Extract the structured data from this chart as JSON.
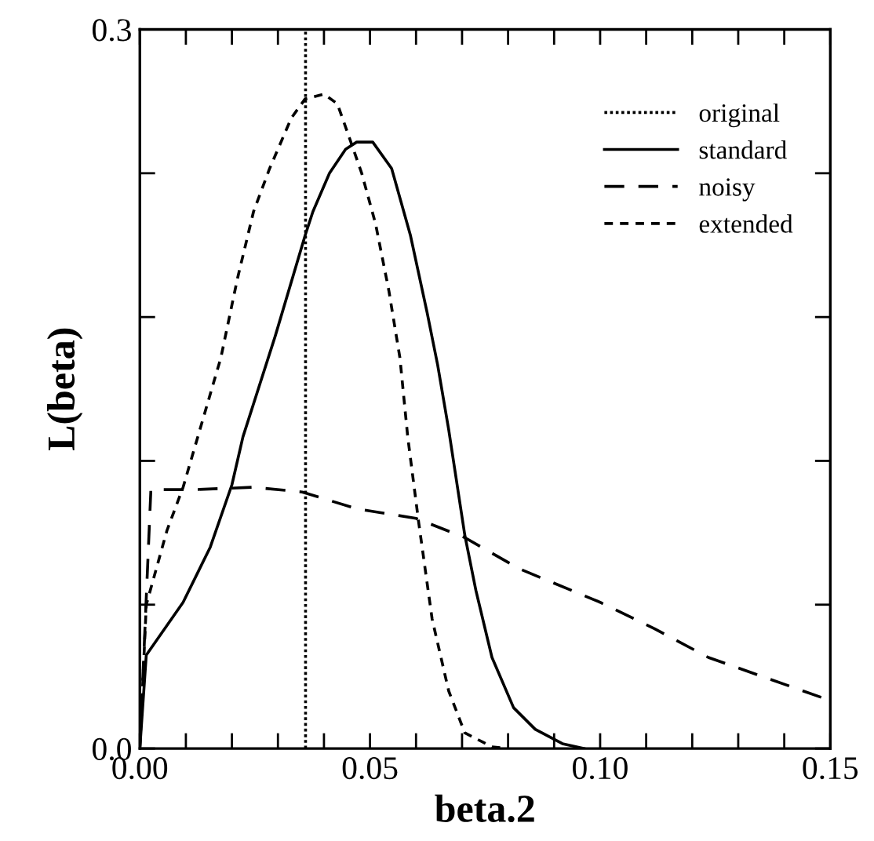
{
  "chart_data": {
    "type": "line",
    "xlabel": "beta.2",
    "ylabel": "L(beta)",
    "xlim": [
      0,
      0.15
    ],
    "ylim": [
      0,
      0.3
    ],
    "xticks": [
      {
        "value": 0,
        "label": "0.00"
      },
      {
        "value": 0.01,
        "label": null
      },
      {
        "value": 0.02,
        "label": null
      },
      {
        "value": 0.03,
        "label": null
      },
      {
        "value": 0.04,
        "label": null
      },
      {
        "value": 0.05,
        "label": "0.05"
      },
      {
        "value": 0.06,
        "label": null
      },
      {
        "value": 0.07,
        "label": null
      },
      {
        "value": 0.08,
        "label": null
      },
      {
        "value": 0.09,
        "label": null
      },
      {
        "value": 0.1,
        "label": "0.10"
      },
      {
        "value": 0.11,
        "label": null
      },
      {
        "value": 0.12,
        "label": null
      },
      {
        "value": 0.13,
        "label": null
      },
      {
        "value": 0.14,
        "label": null
      },
      {
        "value": 0.15,
        "label": "0.15"
      }
    ],
    "yticks": [
      {
        "value": 0,
        "label": "0.0"
      },
      {
        "value": 0.06,
        "label": null
      },
      {
        "value": 0.12,
        "label": null
      },
      {
        "value": 0.18,
        "label": null
      },
      {
        "value": 0.24,
        "label": null
      },
      {
        "value": 0.3,
        "label": "0.3"
      }
    ],
    "legend": "top right",
    "grid": false,
    "marker": "none",
    "series": [
      {
        "name": "original",
        "color": "#000000",
        "line_style": "dotted",
        "x": [
          0.036,
          0.036
        ],
        "values": [
          0,
          0.3
        ]
      },
      {
        "name": "standard",
        "color": "#000000",
        "line_style": "solid",
        "x": [
          0,
          0.0014,
          0.0094,
          0.0153,
          0.02,
          0.0224,
          0.0294,
          0.0359,
          0.0376,
          0.0412,
          0.0447,
          0.0471,
          0.0506,
          0.0547,
          0.0588,
          0.0624,
          0.0647,
          0.0671,
          0.0706,
          0.073,
          0.0765,
          0.0812,
          0.0859,
          0.0918,
          0.0965
        ],
        "values": [
          0,
          0.039,
          0.061,
          0.084,
          0.11,
          0.13,
          0.172,
          0.214,
          0.224,
          0.24,
          0.25,
          0.253,
          0.253,
          0.242,
          0.214,
          0.182,
          0.16,
          0.133,
          0.089,
          0.066,
          0.038,
          0.017,
          0.008,
          0.002,
          0
        ]
      },
      {
        "name": "noisy",
        "color": "#000000",
        "line_style": "dashed",
        "x": [
          0,
          0.0024,
          0.0118,
          0.0247,
          0.0353,
          0.0471,
          0.06,
          0.0706,
          0.0824,
          0.1,
          0.1118,
          0.1235,
          0.1353,
          0.15
        ],
        "values": [
          0,
          0.108,
          0.108,
          0.109,
          0.107,
          0.1,
          0.096,
          0.088,
          0.075,
          0.061,
          0.05,
          0.038,
          0.03,
          0.02
        ]
      },
      {
        "name": "extended",
        "color": "#000000",
        "line_style": "short_dashed",
        "x": [
          0,
          0.0014,
          0.0059,
          0.0094,
          0.0135,
          0.0176,
          0.0212,
          0.0247,
          0.0282,
          0.0329,
          0.0359,
          0.04,
          0.0429,
          0.0453,
          0.0482,
          0.0512,
          0.0541,
          0.0565,
          0.0582,
          0.0606,
          0.0635,
          0.0671,
          0.0706,
          0.0765,
          0.08
        ],
        "values": [
          0,
          0.06,
          0.091,
          0.109,
          0.136,
          0.163,
          0.196,
          0.224,
          0.242,
          0.263,
          0.271,
          0.273,
          0.269,
          0.256,
          0.24,
          0.219,
          0.191,
          0.163,
          0.13,
          0.094,
          0.054,
          0.024,
          0.0065,
          0.0007,
          0
        ]
      }
    ]
  }
}
